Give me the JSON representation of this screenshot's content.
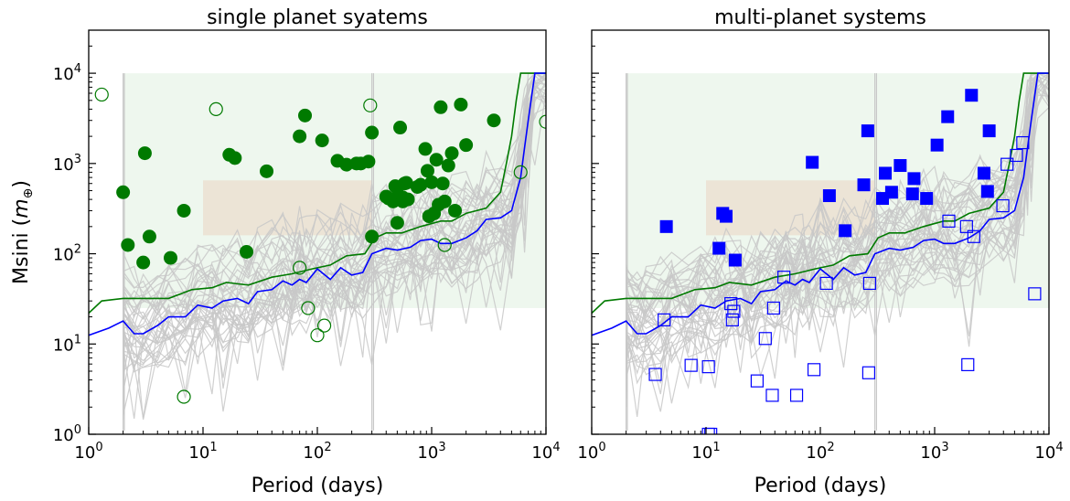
{
  "figure": {
    "ylabel_prefix": "Msini (",
    "ylabel_symbol": "m",
    "ylabel_sub": "⊕",
    "ylabel_suffix": ")"
  },
  "colors": {
    "single": "#007a00",
    "multi": "#0000ff",
    "blue_curve": "#0000ff",
    "green_curve": "#007a00",
    "background_lines": "#c8c8c8",
    "shade_green": "#eef7ee",
    "shade_tan": "#ece4d6"
  },
  "chart_data": [
    {
      "type": "scatter",
      "title": "single planet syatems",
      "xlabel": "Period (days)",
      "ylabel": "Msini (m⊕)",
      "xscale": "log",
      "yscale": "log",
      "xlim": [
        1,
        10000
      ],
      "ylim": [
        1,
        30000
      ],
      "xticks": [
        {
          "value": 1,
          "base": "10",
          "exp": "0"
        },
        {
          "value": 10,
          "base": "10",
          "exp": "1"
        },
        {
          "value": 100,
          "base": "10",
          "exp": "2"
        },
        {
          "value": 1000,
          "base": "10",
          "exp": "3"
        },
        {
          "value": 10000,
          "base": "10",
          "exp": "4"
        }
      ],
      "yticks": [
        {
          "value": 1,
          "base": "10",
          "exp": "0"
        },
        {
          "value": 10,
          "base": "10",
          "exp": "1"
        },
        {
          "value": 100,
          "base": "10",
          "exp": "2"
        },
        {
          "value": 1000,
          "base": "10",
          "exp": "3"
        },
        {
          "value": 10000,
          "base": "10",
          "exp": "4"
        }
      ],
      "grid": false,
      "shaded_regions": [
        {
          "x": [
            2,
            10000
          ],
          "y": [
            25,
            10000
          ],
          "color": "green"
        },
        {
          "x": [
            10,
            300
          ],
          "y": [
            160,
            650
          ],
          "color": "tan"
        }
      ],
      "green_curve": {
        "x": [
          1,
          1.3,
          2,
          5,
          8,
          12,
          16,
          25,
          40,
          60,
          90,
          130,
          180,
          260,
          320,
          400,
          550,
          800,
          1200,
          1500,
          2000,
          3000,
          4000,
          4500,
          5000,
          5500,
          6000,
          6500,
          10000
        ],
        "y": [
          22,
          30,
          32,
          32,
          40,
          42,
          48,
          45,
          55,
          60,
          68,
          75,
          95,
          100,
          150,
          170,
          170,
          200,
          230,
          230,
          280,
          320,
          480,
          1000,
          2000,
          5000,
          10000,
          10000,
          10000
        ]
      },
      "blue_curve": {
        "x": [
          1,
          1.5,
          2,
          2.5,
          3,
          4,
          5,
          7,
          9,
          12,
          15,
          20,
          25,
          30,
          40,
          50,
          60,
          70,
          80,
          100,
          130,
          160,
          200,
          250,
          300,
          400,
          500,
          650,
          800,
          1000,
          1200,
          1500,
          2000,
          2500,
          3000,
          4000,
          5000,
          6000,
          6500,
          7000,
          8000,
          10000
        ],
        "y": [
          12.5,
          15,
          18,
          13,
          13,
          16,
          20,
          20,
          27,
          25,
          30,
          32,
          28,
          38,
          40,
          50,
          45,
          52,
          48,
          68,
          52,
          70,
          58,
          62,
          100,
          115,
          110,
          118,
          140,
          145,
          130,
          130,
          150,
          180,
          240,
          250,
          300,
          700,
          1500,
          3000,
          10000,
          10000
        ]
      },
      "filled_points": {
        "x": [
          2,
          2.2,
          3,
          3.1,
          3.4,
          5.2,
          6.8,
          17,
          19,
          24,
          36,
          70,
          78,
          110,
          150,
          180,
          220,
          240,
          280,
          300,
          300,
          400,
          420,
          460,
          480,
          500,
          510,
          530,
          560,
          560,
          580,
          600,
          620,
          750,
          800,
          880,
          920,
          950,
          1000,
          1050,
          1100,
          1150,
          1200,
          1300,
          1400,
          1500,
          1800,
          2000,
          3500,
          1600,
          1250
        ],
        "y": [
          480,
          125,
          80,
          1300,
          155,
          90,
          300,
          1250,
          1150,
          105,
          820,
          2000,
          3400,
          1800,
          1070,
          970,
          1000,
          1000,
          1050,
          155,
          2200,
          430,
          410,
          380,
          560,
          220,
          450,
          2500,
          420,
          380,
          600,
          610,
          400,
          550,
          580,
          1450,
          830,
          260,
          620,
          280,
          1100,
          350,
          4200,
          380,
          950,
          1300,
          4500,
          1600,
          3000,
          300,
          600
        ]
      },
      "open_points": {
        "x": [
          1.3,
          6.8,
          13,
          70,
          83,
          100,
          115,
          290,
          1300,
          6000,
          10000
        ],
        "y": [
          5800,
          2.6,
          4000,
          70,
          25,
          12.5,
          16,
          4400,
          125,
          800,
          2900
        ]
      }
    },
    {
      "type": "scatter",
      "title": "multi-planet systems",
      "xlabel": "Period (days)",
      "ylabel": "",
      "xscale": "log",
      "yscale": "log",
      "xlim": [
        1,
        10000
      ],
      "ylim": [
        1,
        30000
      ],
      "xticks": [
        {
          "value": 1,
          "base": "10",
          "exp": "0"
        },
        {
          "value": 10,
          "base": "10",
          "exp": "1"
        },
        {
          "value": 100,
          "base": "10",
          "exp": "2"
        },
        {
          "value": 1000,
          "base": "10",
          "exp": "3"
        },
        {
          "value": 10000,
          "base": "10",
          "exp": "4"
        }
      ],
      "yticks": [
        {
          "value": 1,
          "base": "10",
          "exp": "0"
        },
        {
          "value": 10,
          "base": "10",
          "exp": "1"
        },
        {
          "value": 100,
          "base": "10",
          "exp": "2"
        },
        {
          "value": 1000,
          "base": "10",
          "exp": "3"
        },
        {
          "value": 10000,
          "base": "10",
          "exp": "4"
        }
      ],
      "grid": false,
      "shaded_regions": [
        {
          "x": [
            2,
            10000
          ],
          "y": [
            25,
            10000
          ],
          "color": "green"
        },
        {
          "x": [
            10,
            300
          ],
          "y": [
            160,
            650
          ],
          "color": "tan"
        }
      ],
      "green_curve": {
        "x": [
          1,
          1.3,
          2,
          5,
          8,
          12,
          16,
          25,
          40,
          60,
          90,
          130,
          180,
          260,
          320,
          400,
          550,
          800,
          1200,
          1500,
          2000,
          3000,
          4000,
          4500,
          5000,
          5500,
          6000,
          6500,
          10000
        ],
        "y": [
          22,
          30,
          32,
          32,
          40,
          42,
          48,
          45,
          55,
          60,
          68,
          75,
          95,
          100,
          150,
          170,
          170,
          200,
          230,
          230,
          280,
          320,
          480,
          1000,
          2000,
          5000,
          10000,
          10000,
          10000
        ]
      },
      "blue_curve": {
        "x": [
          1,
          1.5,
          2,
          2.5,
          3,
          4,
          5,
          7,
          9,
          12,
          15,
          20,
          25,
          30,
          40,
          50,
          60,
          70,
          80,
          100,
          130,
          160,
          200,
          250,
          300,
          400,
          500,
          650,
          800,
          1000,
          1200,
          1500,
          2000,
          2500,
          3000,
          4000,
          5000,
          6000,
          6500,
          7000,
          8000,
          10000
        ],
        "y": [
          12.5,
          15,
          18,
          13,
          13,
          16,
          20,
          20,
          27,
          25,
          30,
          32,
          28,
          38,
          40,
          50,
          45,
          52,
          48,
          68,
          52,
          70,
          58,
          62,
          100,
          115,
          110,
          118,
          140,
          145,
          130,
          130,
          150,
          180,
          240,
          250,
          300,
          700,
          1500,
          3000,
          10000,
          10000
        ]
      },
      "filled_points": {
        "x": [
          4.5,
          13,
          14,
          15,
          18,
          85,
          120,
          165,
          240,
          260,
          350,
          370,
          420,
          500,
          640,
          660,
          850,
          1050,
          1300,
          2100,
          2700,
          2900,
          3000
        ],
        "y": [
          200,
          115,
          280,
          260,
          85,
          1030,
          440,
          180,
          580,
          2300,
          410,
          780,
          480,
          950,
          460,
          680,
          410,
          1600,
          3300,
          5700,
          780,
          490,
          2300
        ]
      },
      "open_points": {
        "x": [
          3.6,
          4.3,
          7.4,
          10.5,
          11,
          16.5,
          17,
          17.5,
          28,
          33,
          38,
          39,
          48,
          62,
          88,
          113,
          265,
          270,
          1330,
          1900,
          1950,
          2200,
          3950,
          4300,
          5200,
          5900,
          7500,
          10.5
        ],
        "y": [
          4.6,
          18.5,
          5.8,
          5.6,
          1,
          28,
          18.5,
          23,
          3.9,
          11.5,
          2.7,
          25,
          55,
          2.7,
          5.2,
          47,
          4.8,
          47,
          230,
          200,
          5.9,
          155,
          340,
          980,
          1230,
          1700,
          36,
          1
        ]
      }
    }
  ]
}
